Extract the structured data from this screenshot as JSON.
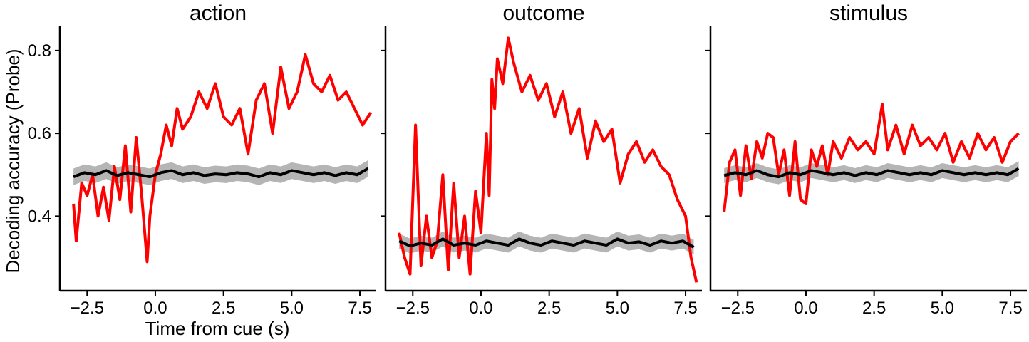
{
  "figure": {
    "ylabel": "Decoding accuracy (Probe)",
    "xlabel": "Time from cue (s)",
    "colors": {
      "observed": "#ff0000",
      "null_mean": "#000000",
      "null_band": "#b5b5b5",
      "axes": "#000000"
    }
  },
  "chart_data": [
    {
      "type": "line",
      "title": "action",
      "xlabel": "Time from cue (s)",
      "ylabel": "Decoding accuracy (Probe)",
      "xlim": [
        -3.5,
        8.1
      ],
      "ylim": [
        0.22,
        0.86
      ],
      "xticks": [
        -2.5,
        0.0,
        2.5,
        5.0,
        7.5
      ],
      "xtick_labels": [
        "−2.5",
        "0.0",
        "2.5",
        "5.0",
        "7.5"
      ],
      "yticks": [
        0.4,
        0.6,
        0.8
      ],
      "ytick_labels": [
        "0.4",
        "0.6",
        "0.8"
      ],
      "grid": false,
      "series": [
        {
          "role": "observed",
          "x": [
            -3.0,
            -2.9,
            -2.7,
            -2.5,
            -2.3,
            -2.1,
            -1.9,
            -1.7,
            -1.5,
            -1.3,
            -1.1,
            -0.9,
            -0.7,
            -0.5,
            -0.3,
            -0.2,
            0.0,
            0.2,
            0.4,
            0.6,
            0.8,
            1.0,
            1.3,
            1.6,
            1.9,
            2.2,
            2.5,
            2.8,
            3.1,
            3.4,
            3.7,
            4.0,
            4.3,
            4.6,
            4.9,
            5.2,
            5.5,
            5.8,
            6.1,
            6.4,
            6.7,
            7.0,
            7.3,
            7.6,
            7.9
          ],
          "values": [
            0.43,
            0.34,
            0.48,
            0.45,
            0.5,
            0.4,
            0.47,
            0.39,
            0.52,
            0.44,
            0.57,
            0.41,
            0.59,
            0.45,
            0.29,
            0.4,
            0.5,
            0.55,
            0.62,
            0.57,
            0.66,
            0.61,
            0.64,
            0.7,
            0.66,
            0.72,
            0.64,
            0.62,
            0.66,
            0.55,
            0.68,
            0.72,
            0.6,
            0.76,
            0.66,
            0.7,
            0.79,
            0.72,
            0.7,
            0.74,
            0.68,
            0.7,
            0.66,
            0.62,
            0.65
          ]
        },
        {
          "role": "null_mean",
          "x": [
            -3.0,
            -2.6,
            -2.2,
            -1.8,
            -1.4,
            -1.0,
            -0.6,
            -0.2,
            0.2,
            0.6,
            1.0,
            1.4,
            1.8,
            2.2,
            2.6,
            3.0,
            3.4,
            3.8,
            4.2,
            4.6,
            5.0,
            5.4,
            5.8,
            6.2,
            6.6,
            7.0,
            7.4,
            7.8
          ],
          "values": [
            0.495,
            0.505,
            0.5,
            0.51,
            0.498,
            0.505,
            0.5,
            0.495,
            0.505,
            0.51,
            0.5,
            0.505,
            0.498,
            0.502,
            0.5,
            0.505,
            0.502,
            0.495,
            0.505,
            0.5,
            0.51,
            0.505,
            0.5,
            0.505,
            0.498,
            0.505,
            0.5,
            0.515
          ],
          "band": 0.02
        }
      ]
    },
    {
      "type": "line",
      "title": "outcome",
      "xlim": [
        -3.5,
        8.1
      ],
      "ylim": [
        0.22,
        0.86
      ],
      "xticks": [
        -2.5,
        0.0,
        2.5,
        5.0,
        7.5
      ],
      "xtick_labels": [
        "−2.5",
        "0.0",
        "2.5",
        "5.0",
        "7.5"
      ],
      "yticks": [
        0.4,
        0.6,
        0.8
      ],
      "ytick_labels": [
        "",
        "",
        ""
      ],
      "grid": false,
      "series": [
        {
          "role": "observed",
          "x": [
            -3.0,
            -2.8,
            -2.6,
            -2.4,
            -2.2,
            -2.0,
            -1.8,
            -1.6,
            -1.4,
            -1.2,
            -1.0,
            -0.8,
            -0.6,
            -0.4,
            -0.2,
            0.0,
            0.2,
            0.3,
            0.4,
            0.5,
            0.6,
            0.8,
            1.0,
            1.2,
            1.5,
            1.8,
            2.1,
            2.4,
            2.7,
            3.0,
            3.3,
            3.6,
            3.9,
            4.2,
            4.5,
            4.8,
            5.1,
            5.4,
            5.7,
            6.0,
            6.3,
            6.6,
            6.9,
            7.2,
            7.5,
            7.7,
            7.9
          ],
          "values": [
            0.36,
            0.3,
            0.26,
            0.62,
            0.28,
            0.4,
            0.3,
            0.34,
            0.5,
            0.27,
            0.48,
            0.3,
            0.4,
            0.26,
            0.46,
            0.36,
            0.6,
            0.45,
            0.73,
            0.66,
            0.78,
            0.72,
            0.83,
            0.77,
            0.7,
            0.74,
            0.68,
            0.72,
            0.64,
            0.7,
            0.6,
            0.66,
            0.54,
            0.63,
            0.58,
            0.61,
            0.48,
            0.55,
            0.58,
            0.53,
            0.56,
            0.52,
            0.5,
            0.44,
            0.4,
            0.3,
            0.24
          ]
        },
        {
          "role": "null_mean",
          "x": [
            -3.0,
            -2.6,
            -2.2,
            -1.8,
            -1.4,
            -1.0,
            -0.6,
            -0.2,
            0.2,
            0.6,
            1.0,
            1.4,
            1.8,
            2.2,
            2.6,
            3.0,
            3.4,
            3.8,
            4.2,
            4.6,
            5.0,
            5.4,
            5.8,
            6.2,
            6.6,
            7.0,
            7.4,
            7.8
          ],
          "values": [
            0.34,
            0.328,
            0.335,
            0.33,
            0.345,
            0.33,
            0.335,
            0.33,
            0.34,
            0.335,
            0.33,
            0.345,
            0.335,
            0.33,
            0.34,
            0.335,
            0.33,
            0.34,
            0.335,
            0.33,
            0.345,
            0.335,
            0.338,
            0.33,
            0.34,
            0.335,
            0.34,
            0.325
          ],
          "band": 0.018
        }
      ]
    },
    {
      "type": "line",
      "title": "stimulus",
      "xlim": [
        -3.5,
        8.1
      ],
      "ylim": [
        0.22,
        0.86
      ],
      "xticks": [
        -2.5,
        0.0,
        2.5,
        5.0,
        7.5
      ],
      "xtick_labels": [
        "−2.5",
        "0.0",
        "2.5",
        "5.0",
        "7.5"
      ],
      "yticks": [
        0.4,
        0.6,
        0.8
      ],
      "ytick_labels": [
        "",
        "",
        ""
      ],
      "grid": false,
      "series": [
        {
          "role": "observed",
          "x": [
            -3.0,
            -2.8,
            -2.6,
            -2.4,
            -2.2,
            -2.0,
            -1.8,
            -1.6,
            -1.4,
            -1.2,
            -1.0,
            -0.8,
            -0.6,
            -0.4,
            -0.2,
            0.0,
            0.2,
            0.4,
            0.6,
            0.8,
            1.0,
            1.3,
            1.6,
            1.9,
            2.2,
            2.5,
            2.8,
            3.0,
            3.3,
            3.6,
            3.9,
            4.2,
            4.5,
            4.8,
            5.1,
            5.4,
            5.7,
            6.0,
            6.3,
            6.6,
            6.9,
            7.2,
            7.5,
            7.8
          ],
          "values": [
            0.41,
            0.53,
            0.56,
            0.45,
            0.57,
            0.49,
            0.58,
            0.54,
            0.6,
            0.59,
            0.5,
            0.56,
            0.45,
            0.58,
            0.44,
            0.43,
            0.56,
            0.52,
            0.57,
            0.5,
            0.58,
            0.54,
            0.59,
            0.56,
            0.58,
            0.55,
            0.67,
            0.56,
            0.62,
            0.55,
            0.62,
            0.57,
            0.59,
            0.56,
            0.6,
            0.53,
            0.58,
            0.54,
            0.6,
            0.56,
            0.59,
            0.53,
            0.58,
            0.6
          ]
        },
        {
          "role": "null_mean",
          "x": [
            -3.0,
            -2.6,
            -2.2,
            -1.8,
            -1.4,
            -1.0,
            -0.6,
            -0.2,
            0.2,
            0.6,
            1.0,
            1.4,
            1.8,
            2.2,
            2.6,
            3.0,
            3.4,
            3.8,
            4.2,
            4.6,
            5.0,
            5.4,
            5.8,
            6.2,
            6.6,
            7.0,
            7.4,
            7.8
          ],
          "values": [
            0.498,
            0.505,
            0.5,
            0.51,
            0.5,
            0.495,
            0.505,
            0.5,
            0.51,
            0.505,
            0.5,
            0.505,
            0.498,
            0.505,
            0.5,
            0.51,
            0.505,
            0.5,
            0.505,
            0.5,
            0.51,
            0.505,
            0.5,
            0.505,
            0.5,
            0.505,
            0.5,
            0.515
          ],
          "band": 0.018
        }
      ]
    }
  ]
}
